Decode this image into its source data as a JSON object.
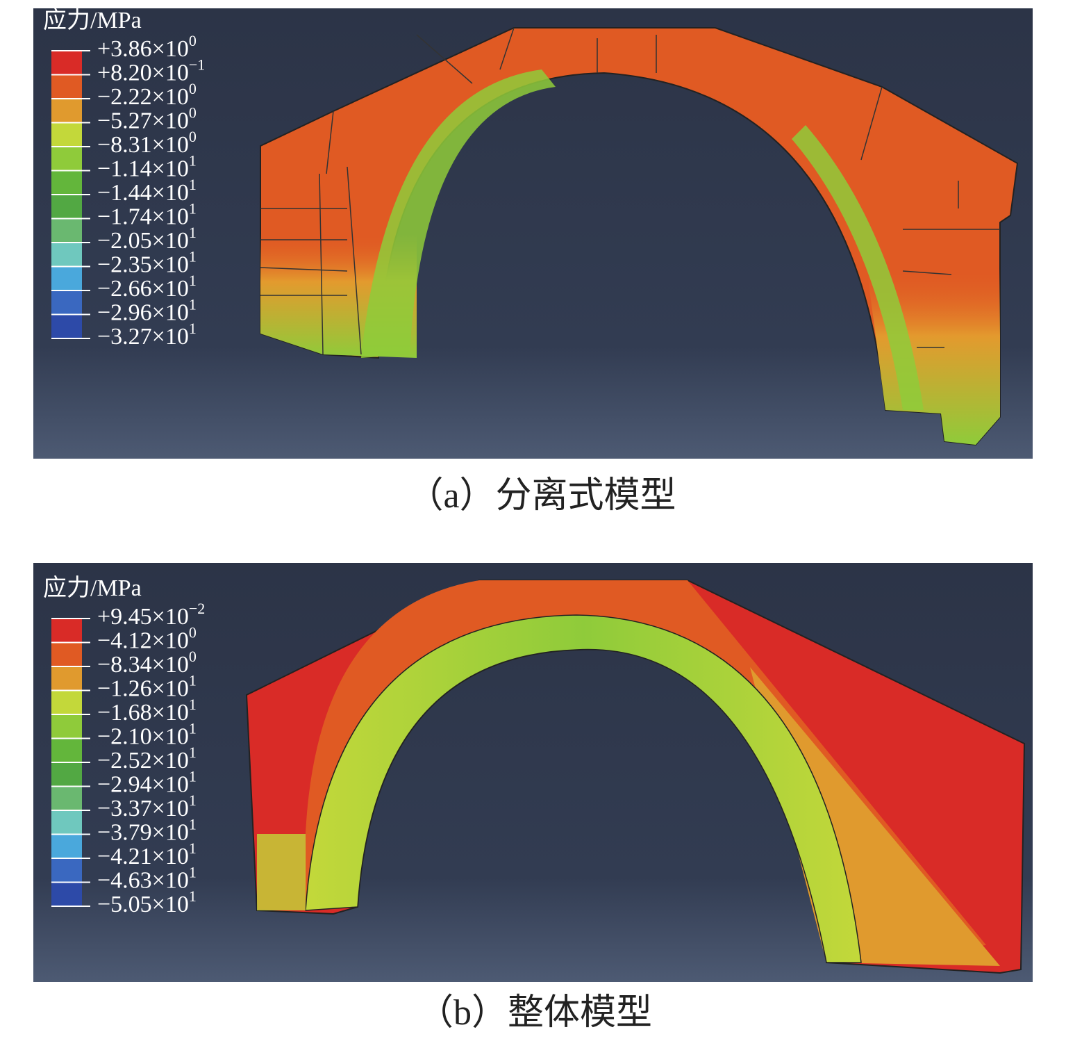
{
  "panels": [
    {
      "legend": {
        "title": "应力/MPa",
        "labels": [
          {
            "mantissa": "+3.86×10",
            "exponent": "0"
          },
          {
            "mantissa": "+8.20×10",
            "exponent": "−1"
          },
          {
            "mantissa": "−2.22×10",
            "exponent": "0"
          },
          {
            "mantissa": "−5.27×10",
            "exponent": "0"
          },
          {
            "mantissa": "−8.31×10",
            "exponent": "0"
          },
          {
            "mantissa": "−1.14×10",
            "exponent": "1"
          },
          {
            "mantissa": "−1.44×10",
            "exponent": "1"
          },
          {
            "mantissa": "−1.74×10",
            "exponent": "1"
          },
          {
            "mantissa": "−2.05×10",
            "exponent": "1"
          },
          {
            "mantissa": "−2.35×10",
            "exponent": "1"
          },
          {
            "mantissa": "−2.66×10",
            "exponent": "1"
          },
          {
            "mantissa": "−2.96×10",
            "exponent": "1"
          },
          {
            "mantissa": "−3.27×10",
            "exponent": "1"
          }
        ]
      },
      "caption": "（a）分离式模型"
    },
    {
      "legend": {
        "title": "应力/MPa",
        "labels": [
          {
            "mantissa": "+9.45×10",
            "exponent": "−2"
          },
          {
            "mantissa": "−4.12×10",
            "exponent": "0"
          },
          {
            "mantissa": "−8.34×10",
            "exponent": "0"
          },
          {
            "mantissa": "−1.26×10",
            "exponent": "1"
          },
          {
            "mantissa": "−1.68×10",
            "exponent": "1"
          },
          {
            "mantissa": "−2.10×10",
            "exponent": "1"
          },
          {
            "mantissa": "−2.52×10",
            "exponent": "1"
          },
          {
            "mantissa": "−2.94×10",
            "exponent": "1"
          },
          {
            "mantissa": "−3.37×10",
            "exponent": "1"
          },
          {
            "mantissa": "−3.79×10",
            "exponent": "1"
          },
          {
            "mantissa": "−4.21×10",
            "exponent": "1"
          },
          {
            "mantissa": "−4.63×10",
            "exponent": "1"
          },
          {
            "mantissa": "−5.05×10",
            "exponent": "1"
          }
        ]
      },
      "caption": "（b）整体模型"
    }
  ]
}
